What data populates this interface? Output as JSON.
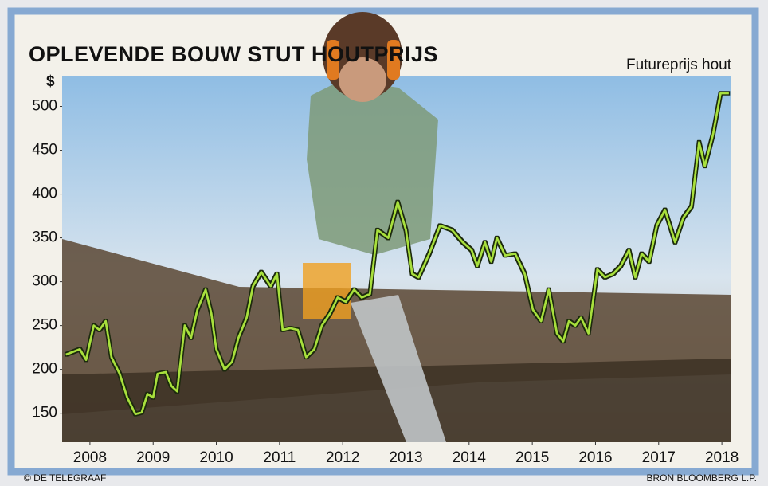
{
  "chart_data": {
    "type": "line",
    "title": "OPLEVENDE BOUW STUT HOUTPRIJS",
    "subtitle": "Futureprijs hout",
    "y_unit": "$",
    "credit": "© DE TELEGRAAF",
    "source": "BRON BLOOMBERG L.P.",
    "color": "#a8e03c",
    "x": [
      2007.62,
      2007.84,
      2007.94,
      2008.06,
      2008.15,
      2008.25,
      2008.34,
      2008.47,
      2008.59,
      2008.72,
      2008.82,
      2008.91,
      2009.0,
      2009.07,
      2009.2,
      2009.29,
      2009.38,
      2009.5,
      2009.6,
      2009.7,
      2009.83,
      2009.92,
      2010.0,
      2010.13,
      2010.25,
      2010.35,
      2010.48,
      2010.58,
      2010.71,
      2010.86,
      2010.96,
      2011.05,
      2011.17,
      2011.29,
      2011.42,
      2011.55,
      2011.67,
      2011.8,
      2011.92,
      2012.05,
      2012.18,
      2012.3,
      2012.43,
      2012.55,
      2012.72,
      2012.87,
      2013.0,
      2013.1,
      2013.2,
      2013.37,
      2013.54,
      2013.73,
      2013.9,
      2014.04,
      2014.13,
      2014.25,
      2014.35,
      2014.44,
      2014.57,
      2014.73,
      2014.88,
      2015.01,
      2015.14,
      2015.26,
      2015.39,
      2015.49,
      2015.58,
      2015.68,
      2015.77,
      2015.89,
      2016.03,
      2016.15,
      2016.28,
      2016.4,
      2016.53,
      2016.63,
      2016.73,
      2016.85,
      2016.97,
      2017.1,
      2017.26,
      2017.39,
      2017.52,
      2017.64,
      2017.73,
      2017.86,
      2017.98,
      2018.11
    ],
    "values": [
      217,
      223,
      211,
      250,
      245,
      255,
      214,
      195,
      168,
      149,
      151,
      172,
      168,
      195,
      197,
      181,
      175,
      250,
      236,
      268,
      291,
      264,
      223,
      200,
      209,
      236,
      259,
      295,
      311,
      295,
      309,
      245,
      247,
      245,
      214,
      223,
      250,
      264,
      282,
      277,
      291,
      282,
      286,
      359,
      350,
      391,
      359,
      309,
      305,
      332,
      364,
      359,
      345,
      336,
      318,
      345,
      323,
      350,
      330,
      332,
      309,
      268,
      255,
      291,
      241,
      232,
      255,
      250,
      259,
      241,
      314,
      305,
      309,
      318,
      336,
      305,
      332,
      323,
      364,
      382,
      345,
      373,
      386,
      459,
      432,
      468,
      515,
      515
    ],
    "xlim": [
      2007.56,
      2018.15
    ],
    "ylim": [
      117,
      535
    ],
    "xticks": [
      2008,
      2009,
      2010,
      2011,
      2012,
      2013,
      2014,
      2015,
      2016,
      2017,
      2018
    ],
    "yticks": [
      150,
      200,
      250,
      300,
      350,
      400,
      450,
      500
    ],
    "grid": false
  }
}
